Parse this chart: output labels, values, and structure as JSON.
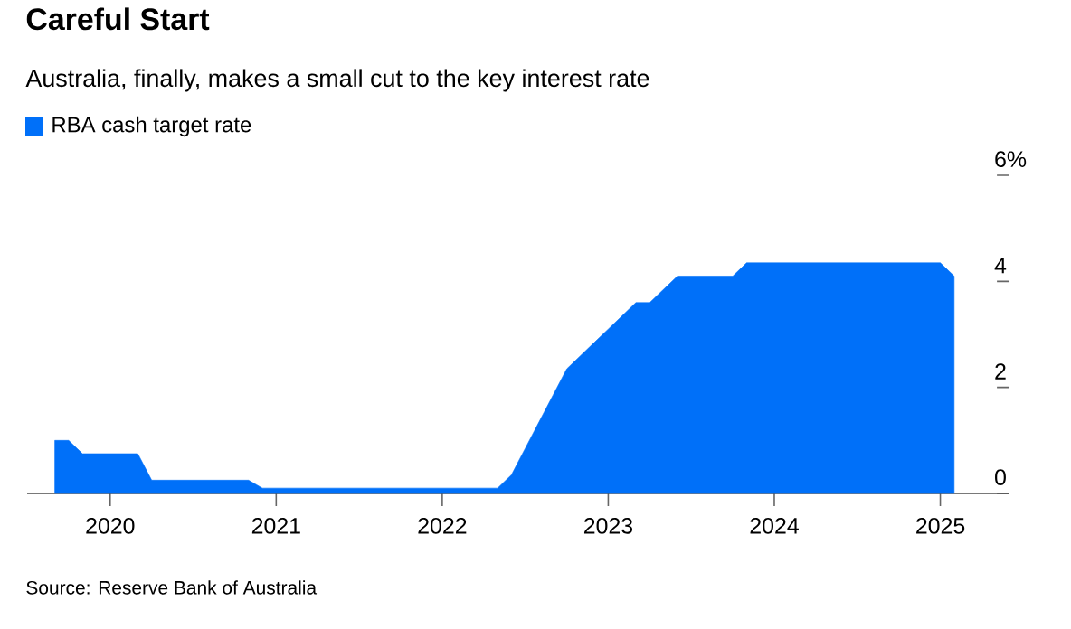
{
  "chart_data": {
    "type": "area",
    "title": "Careful Start",
    "subtitle": "Australia, finally, makes a small cut to the key interest rate",
    "annotations": [
      "Source: Reserve Bank of Australia"
    ],
    "x": [
      "2019-09",
      "2019-10",
      "2019-11",
      "2020-03",
      "2020-04",
      "2020-11",
      "2020-12",
      "2022-05",
      "2022-06",
      "2022-07",
      "2022-08",
      "2022-09",
      "2022-10",
      "2022-11",
      "2022-12",
      "2023-01",
      "2023-02",
      "2023-03",
      "2023-04",
      "2023-05",
      "2023-06",
      "2023-10",
      "2023-11",
      "2025-01",
      "2025-02"
    ],
    "series": [
      {
        "name": "RBA cash target rate",
        "color": "#0070f9",
        "values": [
          1.0,
          1.0,
          0.75,
          0.75,
          0.25,
          0.25,
          0.1,
          0.1,
          0.35,
          0.85,
          1.35,
          1.85,
          2.35,
          2.6,
          2.85,
          3.1,
          3.35,
          3.6,
          3.6,
          3.85,
          4.1,
          4.1,
          4.35,
          4.35,
          4.1
        ]
      }
    ],
    "xlim": [
      "2019-07",
      "2025-06"
    ],
    "xticks": [
      "2020",
      "2021",
      "2022",
      "2023",
      "2024",
      "2025"
    ],
    "ylim": [
      0,
      6
    ],
    "yticks": [
      0,
      2,
      4,
      {
        "value": 6,
        "label": "6%"
      }
    ],
    "grid": false,
    "legend": "top left"
  }
}
